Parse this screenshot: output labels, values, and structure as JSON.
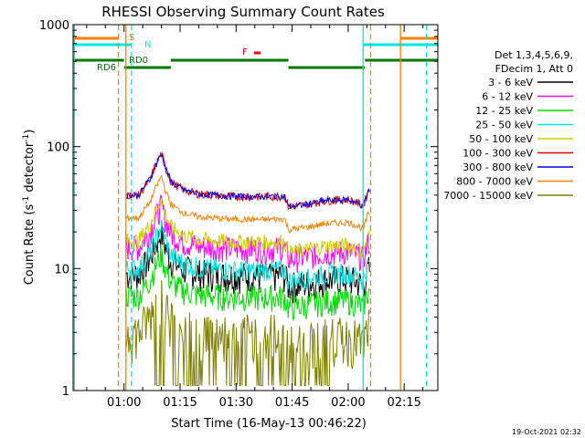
{
  "chart_data": {
    "type": "line",
    "title": "RHESSI Observing Summary Count Rates",
    "xlabel": "Start Time (16-May-13 00:46:22)",
    "ylabel_main": "Count Rate (s",
    "ylabel_sup1": "-1",
    "ylabel_mid": " detector",
    "ylabel_sup2": "-1",
    "ylabel_end": ")",
    "y_scale": "log",
    "ylim": [
      1,
      1000
    ],
    "y_ticks": [
      {
        "v": 1,
        "label": "1"
      },
      {
        "v": 10,
        "label": "10"
      },
      {
        "v": 100,
        "label": "100"
      },
      {
        "v": 1000,
        "label": "1000"
      }
    ],
    "xlim_minutes": [
      46.37,
      144
    ],
    "x_ticks": [
      {
        "m": 60,
        "label": "01:00"
      },
      {
        "m": 75,
        "label": "01:15"
      },
      {
        "m": 90,
        "label": "01:30"
      },
      {
        "m": 105,
        "label": "01:45"
      },
      {
        "m": 120,
        "label": "02:00"
      },
      {
        "m": 135,
        "label": "02:15"
      }
    ],
    "legend_header": [
      "Det 1,3,4,5,6,9,",
      "FDecim 1, Att 0"
    ],
    "legend_position": "right",
    "series": [
      {
        "name": "3 - 6 keV",
        "color": "#000000"
      },
      {
        "name": "6 - 12 keV",
        "color": "#ff00ff"
      },
      {
        "name": "12 - 25 keV",
        "color": "#00dd00"
      },
      {
        "name": "25 - 50 keV",
        "color": "#00e5e5"
      },
      {
        "name": "50 - 100 keV",
        "color": "#cccc00"
      },
      {
        "name": "100 - 300 keV",
        "color": "#ee0000"
      },
      {
        "name": "300 - 800 keV",
        "color": "#0000ee"
      },
      {
        "name": "800 - 7000 keV",
        "color": "#ff8000"
      },
      {
        "name": "7000 - 15000 keV",
        "color": "#808000"
      }
    ],
    "flag_labels": {
      "saa": "S",
      "night": "N",
      "flare": "F",
      "rd0": "RD0",
      "rd6": "RD6"
    },
    "flag_colors": {
      "saa": "#ff8000",
      "night": "#00e5e5",
      "flare": "#ee0000",
      "decim": "#007700"
    },
    "vertical_markers": [
      {
        "m": 46.7,
        "color": "#00e5e5",
        "dash": false
      },
      {
        "m": 58.5,
        "color": "#ff8000",
        "dash": true
      },
      {
        "m": 60.5,
        "color": "#ff8000",
        "dash": false
      },
      {
        "m": 62.0,
        "color": "#00e5e5",
        "dash": true
      },
      {
        "m": 124.0,
        "color": "#00e5e5",
        "dash": false
      },
      {
        "m": 126.0,
        "color": "#ff8000",
        "dash": true
      },
      {
        "m": 134.0,
        "color": "#ff8000",
        "dash": false
      },
      {
        "m": 141.0,
        "color": "#00e5e5",
        "dash": true
      }
    ],
    "footer_date": "19-Oct-2021 02:32"
  }
}
